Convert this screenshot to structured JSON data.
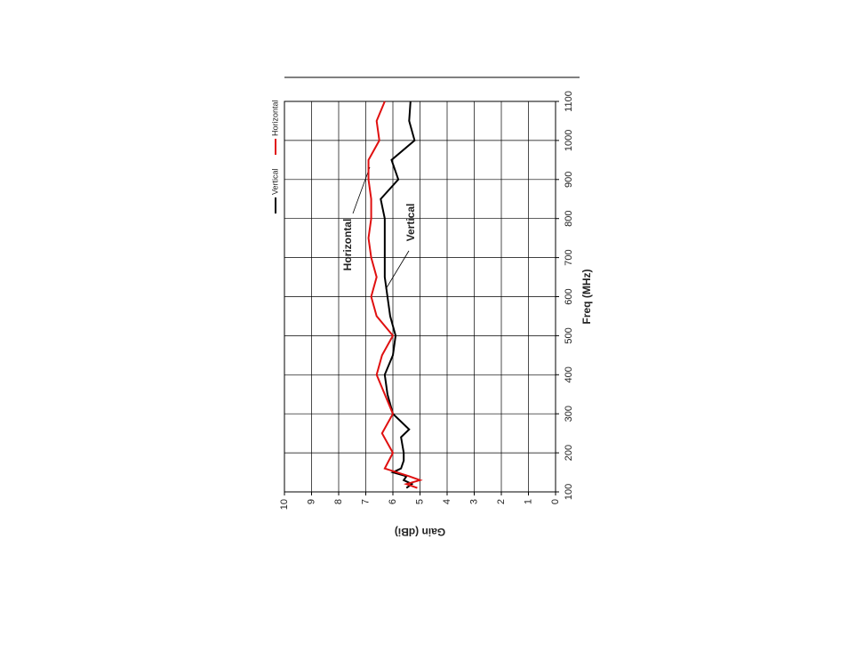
{
  "chart_data": {
    "type": "line",
    "x_label": "Freq (MHz)",
    "y_label": "Gain (dBi)",
    "xlim": [
      100,
      1100
    ],
    "xticks": [
      100,
      200,
      300,
      400,
      500,
      600,
      700,
      800,
      900,
      1000,
      1100
    ],
    "ylim": [
      0,
      10
    ],
    "yticks": [
      0,
      1,
      2,
      3,
      4,
      5,
      6,
      7,
      8,
      9,
      10
    ],
    "grid": true,
    "legend": "top",
    "annotations": [
      "Horizontal",
      "Vertical"
    ],
    "series": [
      {
        "name": "Vertical",
        "color": "#000000",
        "x": [
          110,
          120,
          130,
          140,
          150,
          160,
          180,
          200,
          240,
          260,
          300,
          350,
          400,
          450,
          500,
          550,
          600,
          650,
          700,
          750,
          800,
          850,
          900,
          950,
          1000,
          1050,
          1100
        ],
        "values": [
          5.5,
          5.3,
          5.6,
          5.5,
          6.0,
          5.7,
          5.6,
          5.6,
          5.7,
          5.4,
          6.0,
          6.2,
          6.3,
          6.0,
          5.9,
          6.1,
          6.2,
          6.3,
          6.3,
          6.3,
          6.3,
          6.45,
          5.8,
          6.05,
          5.2,
          5.4,
          5.35
        ]
      },
      {
        "name": "Horizontal",
        "color": "#e01010",
        "x": [
          110,
          120,
          130,
          140,
          160,
          200,
          250,
          300,
          350,
          400,
          450,
          500,
          550,
          600,
          650,
          700,
          750,
          800,
          850,
          900,
          950,
          1000,
          1050,
          1100
        ],
        "values": [
          5.1,
          5.5,
          5.0,
          5.4,
          6.3,
          6.0,
          6.4,
          6.0,
          6.3,
          6.6,
          6.4,
          6.0,
          6.6,
          6.8,
          6.6,
          6.8,
          6.9,
          6.8,
          6.8,
          6.9,
          6.9,
          6.5,
          6.6,
          6.3
        ]
      }
    ]
  }
}
